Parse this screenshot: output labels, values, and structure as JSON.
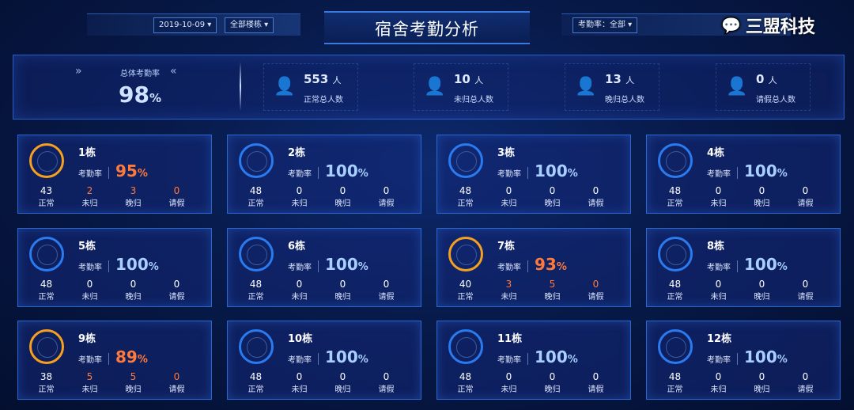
{
  "header": {
    "title": "宿舍考勤分析",
    "date_select": "2019-10-09",
    "building_select": "全部楼栋",
    "rate_select": "考勤率：全部"
  },
  "summary": {
    "total_label": "总体考勤率",
    "total_value": "98",
    "unit": "%",
    "stats": [
      {
        "value": "553",
        "unit": "人",
        "label": "正常总人数",
        "icon": "user-check-icon",
        "color": "#2aa8e8"
      },
      {
        "value": "10",
        "unit": "人",
        "label": "未归总人数",
        "icon": "user-absent-icon",
        "color": "#f0a820"
      },
      {
        "value": "13",
        "unit": "人",
        "label": "晚归总人数",
        "icon": "user-clock-icon",
        "color": "#f0a820"
      },
      {
        "value": "0",
        "unit": "人",
        "label": "请假总人数",
        "icon": "user-leave-icon",
        "color": "#f0a820"
      }
    ]
  },
  "labels": {
    "rate": "考勤率",
    "normal": "正常",
    "absent": "未归",
    "late": "晚归",
    "leave": "请假",
    "pct": "%"
  },
  "colors": {
    "full": "#2a7af0",
    "warn": "#f5a020",
    "warn_text": "#ff7a3a"
  },
  "buildings": [
    {
      "name": "1栋",
      "rate": "95",
      "normal": "43",
      "absent": "2",
      "late": "3",
      "leave": "0"
    },
    {
      "name": "2栋",
      "rate": "100",
      "normal": "48",
      "absent": "0",
      "late": "0",
      "leave": "0"
    },
    {
      "name": "3栋",
      "rate": "100",
      "normal": "48",
      "absent": "0",
      "late": "0",
      "leave": "0"
    },
    {
      "name": "4栋",
      "rate": "100",
      "normal": "48",
      "absent": "0",
      "late": "0",
      "leave": "0"
    },
    {
      "name": "5栋",
      "rate": "100",
      "normal": "48",
      "absent": "0",
      "late": "0",
      "leave": "0"
    },
    {
      "name": "6栋",
      "rate": "100",
      "normal": "48",
      "absent": "0",
      "late": "0",
      "leave": "0"
    },
    {
      "name": "7栋",
      "rate": "93",
      "normal": "40",
      "absent": "3",
      "late": "5",
      "leave": "0"
    },
    {
      "name": "8栋",
      "rate": "100",
      "normal": "48",
      "absent": "0",
      "late": "0",
      "leave": "0"
    },
    {
      "name": "9栋",
      "rate": "89",
      "normal": "38",
      "absent": "5",
      "late": "5",
      "leave": "0"
    },
    {
      "name": "10栋",
      "rate": "100",
      "normal": "48",
      "absent": "0",
      "late": "0",
      "leave": "0"
    },
    {
      "name": "11栋",
      "rate": "100",
      "normal": "48",
      "absent": "0",
      "late": "0",
      "leave": "0"
    },
    {
      "name": "12栋",
      "rate": "100",
      "normal": "48",
      "absent": "0",
      "late": "0",
      "leave": "0"
    }
  ],
  "watermark": "三盟科技"
}
